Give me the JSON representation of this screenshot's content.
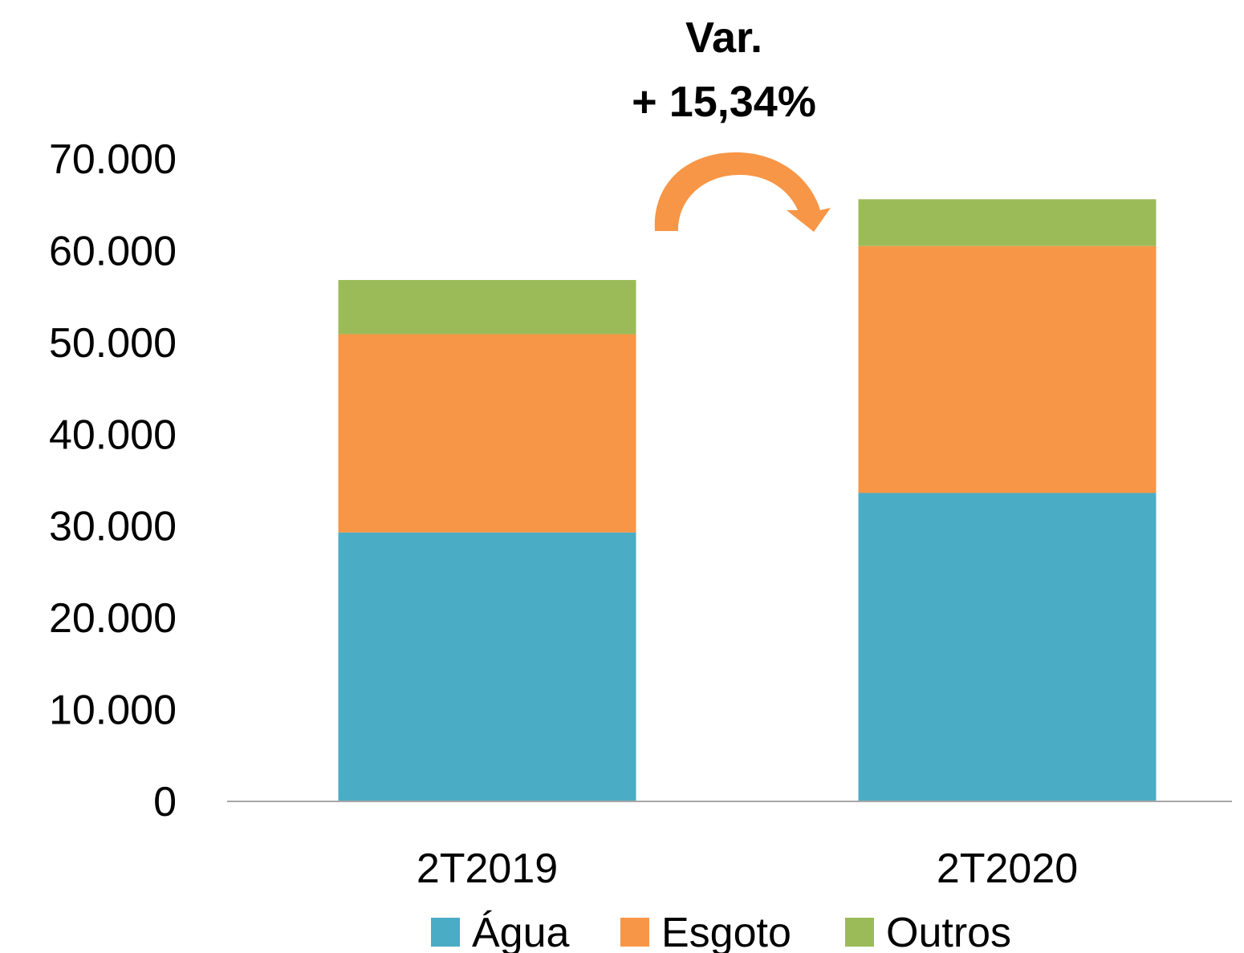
{
  "chart_data": {
    "type": "bar",
    "stacked": true,
    "categories": [
      "2T2019",
      "2T2020"
    ],
    "series": [
      {
        "name": "Água",
        "color": "#4BACC6",
        "values": [
          29300,
          33600
        ]
      },
      {
        "name": "Esgoto",
        "color": "#F79646",
        "values": [
          21600,
          26900
        ]
      },
      {
        "name": "Outros",
        "color": "#9BBB59",
        "values": [
          5900,
          5100
        ]
      }
    ],
    "ylim": [
      0,
      70000
    ],
    "yticks": [
      0,
      10000,
      20000,
      30000,
      40000,
      50000,
      60000,
      70000
    ],
    "ytick_labels": [
      "0",
      "10.000",
      "20.000",
      "30.000",
      "40.000",
      "50.000",
      "60.000",
      "70.000"
    ],
    "grid": false,
    "legend_position": "bottom",
    "annotation": {
      "line1": "Var.",
      "line2": "+ 15,34%",
      "arrow_color": "#F79646",
      "arrow": "curved arrow from 2T2019 to 2T2020"
    }
  }
}
